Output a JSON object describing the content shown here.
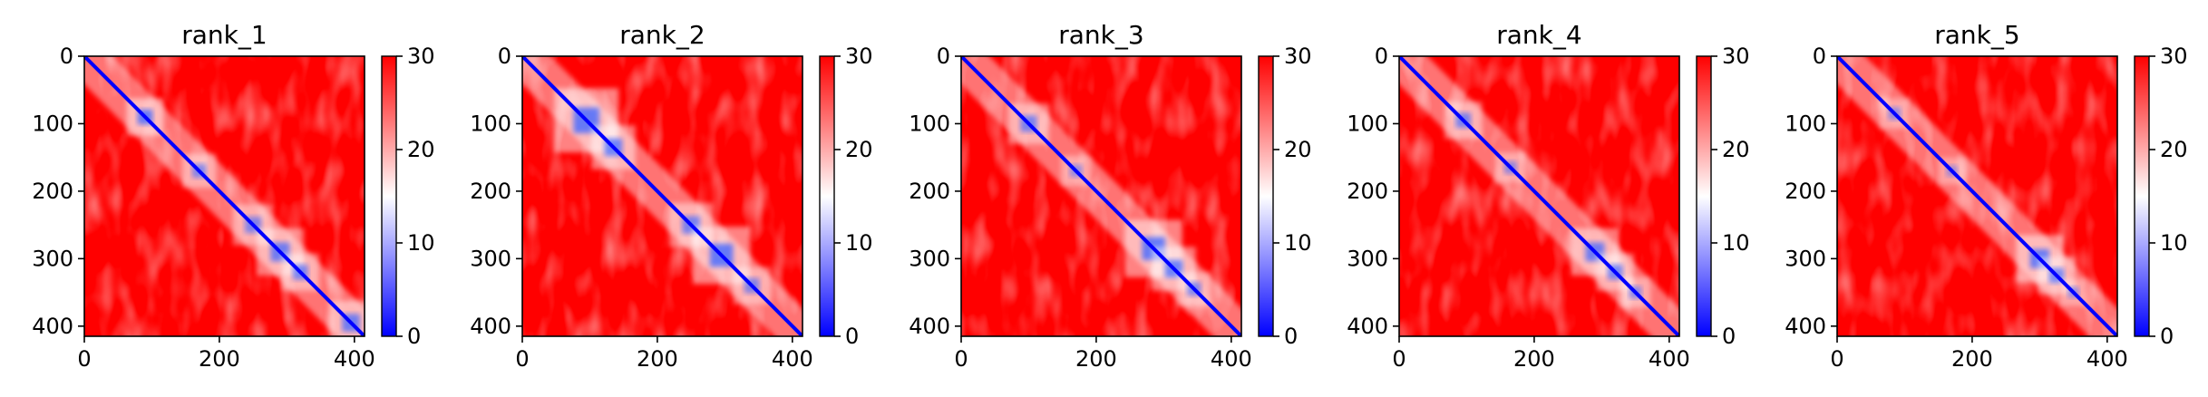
{
  "colors": {
    "scale_low": "#0000ff",
    "scale_mid": "#ffffff",
    "scale_high": "#ff0000",
    "axis": "#000000",
    "background": "#ffffff"
  },
  "chart_data": [
    {
      "type": "heatmap",
      "title": "rank_1",
      "xlim": [
        0,
        415
      ],
      "ylim": [
        415,
        0
      ],
      "x_ticks": [
        "0",
        "200",
        "400"
      ],
      "y_ticks": [
        "0",
        "100",
        "200",
        "300",
        "400"
      ],
      "colorbar": {
        "min": 0,
        "max": 30,
        "ticks": [
          "0",
          "10",
          "20",
          "30"
        ],
        "colormap": "bwr"
      },
      "blue_blocks": [
        {
          "center": [
            90,
            90
          ],
          "size": 22,
          "strength": 0.85
        },
        {
          "center": [
            170,
            170
          ],
          "size": 20,
          "strength": 0.7
        },
        {
          "center": [
            250,
            250
          ],
          "size": 24,
          "strength": 0.7
        },
        {
          "center": [
            290,
            290
          ],
          "size": 28,
          "strength": 0.8
        },
        {
          "center": [
            320,
            320
          ],
          "size": 22,
          "strength": 0.75
        },
        {
          "center": [
            395,
            395
          ],
          "size": 26,
          "strength": 0.8
        }
      ]
    },
    {
      "type": "heatmap",
      "title": "rank_2",
      "xlim": [
        0,
        415
      ],
      "ylim": [
        415,
        0
      ],
      "x_ticks": [
        "0",
        "200",
        "400"
      ],
      "y_ticks": [
        "0",
        "100",
        "200",
        "300",
        "400"
      ],
      "colorbar": {
        "min": 0,
        "max": 30,
        "ticks": [
          "0",
          "10",
          "20",
          "30"
        ],
        "colormap": "bwr"
      },
      "blue_blocks": [
        {
          "center": [
            95,
            95
          ],
          "size": 38,
          "strength": 0.85
        },
        {
          "center": [
            135,
            135
          ],
          "size": 26,
          "strength": 0.8
        },
        {
          "center": [
            250,
            250
          ],
          "size": 26,
          "strength": 0.75
        },
        {
          "center": [
            295,
            295
          ],
          "size": 34,
          "strength": 0.85
        },
        {
          "center": [
            340,
            340
          ],
          "size": 22,
          "strength": 0.7
        }
      ]
    },
    {
      "type": "heatmap",
      "title": "rank_3",
      "xlim": [
        0,
        415
      ],
      "ylim": [
        415,
        0
      ],
      "x_ticks": [
        "0",
        "200",
        "400"
      ],
      "y_ticks": [
        "0",
        "100",
        "200",
        "300",
        "400"
      ],
      "colorbar": {
        "min": 0,
        "max": 30,
        "ticks": [
          "0",
          "10",
          "20",
          "30"
        ],
        "colormap": "bwr"
      },
      "blue_blocks": [
        {
          "center": [
            100,
            100
          ],
          "size": 24,
          "strength": 0.75
        },
        {
          "center": [
            170,
            170
          ],
          "size": 18,
          "strength": 0.6
        },
        {
          "center": [
            285,
            285
          ],
          "size": 34,
          "strength": 0.85
        },
        {
          "center": [
            315,
            315
          ],
          "size": 26,
          "strength": 0.8
        },
        {
          "center": [
            345,
            345
          ],
          "size": 20,
          "strength": 0.7
        }
      ]
    },
    {
      "type": "heatmap",
      "title": "rank_4",
      "xlim": [
        0,
        415
      ],
      "ylim": [
        415,
        0
      ],
      "x_ticks": [
        "0",
        "200",
        "400"
      ],
      "y_ticks": [
        "0",
        "100",
        "200",
        "300",
        "400"
      ],
      "colorbar": {
        "min": 0,
        "max": 30,
        "ticks": [
          "0",
          "10",
          "20",
          "30"
        ],
        "colormap": "bwr"
      },
      "blue_blocks": [
        {
          "center": [
            95,
            95
          ],
          "size": 22,
          "strength": 0.75
        },
        {
          "center": [
            165,
            165
          ],
          "size": 18,
          "strength": 0.65
        },
        {
          "center": [
            290,
            290
          ],
          "size": 28,
          "strength": 0.8
        },
        {
          "center": [
            320,
            320
          ],
          "size": 22,
          "strength": 0.75
        },
        {
          "center": [
            350,
            350
          ],
          "size": 18,
          "strength": 0.65
        }
      ]
    },
    {
      "type": "heatmap",
      "title": "rank_5",
      "xlim": [
        0,
        415
      ],
      "ylim": [
        415,
        0
      ],
      "x_ticks": [
        "0",
        "200",
        "400"
      ],
      "y_ticks": [
        "0",
        "100",
        "200",
        "300",
        "400"
      ],
      "colorbar": {
        "min": 0,
        "max": 30,
        "ticks": [
          "0",
          "10",
          "20",
          "30"
        ],
        "colormap": "bwr"
      },
      "blue_blocks": [
        {
          "center": [
            85,
            85
          ],
          "size": 18,
          "strength": 0.6
        },
        {
          "center": [
            170,
            170
          ],
          "size": 16,
          "strength": 0.55
        },
        {
          "center": [
            300,
            300
          ],
          "size": 28,
          "strength": 0.85
        },
        {
          "center": [
            325,
            325
          ],
          "size": 22,
          "strength": 0.75
        },
        {
          "center": [
            350,
            350
          ],
          "size": 16,
          "strength": 0.6
        }
      ]
    }
  ]
}
